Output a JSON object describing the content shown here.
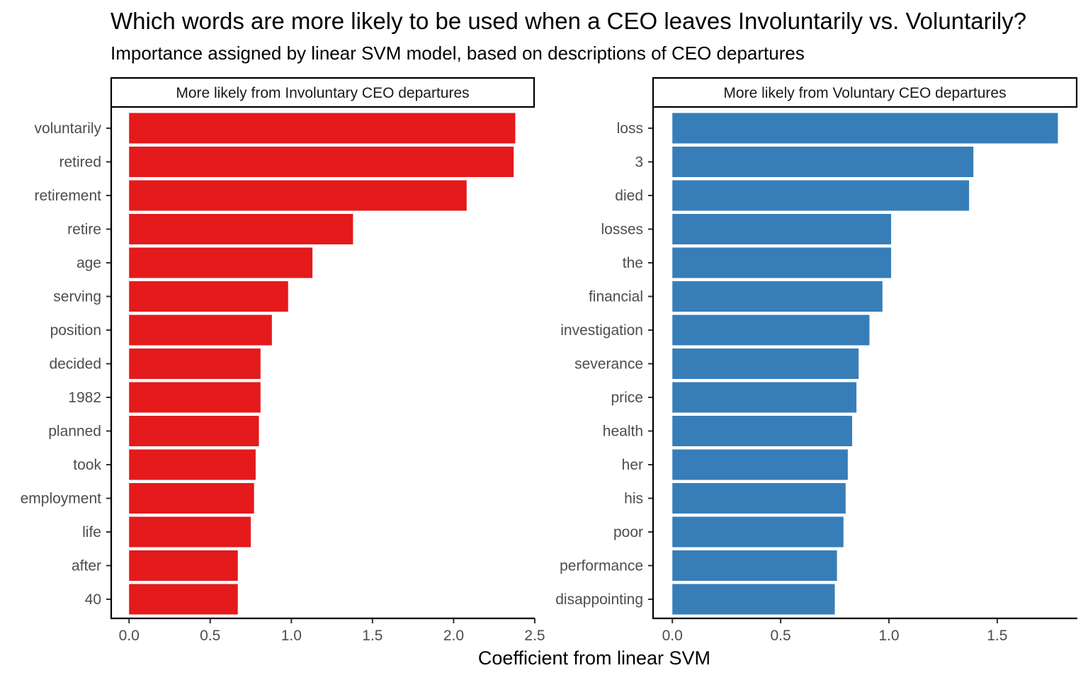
{
  "chart_data": {
    "type": "bar",
    "orientation": "horizontal",
    "title": "Which words are more likely to be used when a CEO leaves Involuntarily vs. Voluntarily?",
    "subtitle": "Importance assigned by linear SVM model, based on descriptions of CEO departures",
    "xlabel": "Coefficient from linear SVM",
    "panels": [
      {
        "strip": "More likely from Involuntary CEO departures",
        "color": "#E41A1C",
        "xlim": [
          -0.11,
          2.5
        ],
        "ticks": [
          0,
          0.5,
          1,
          1.5,
          2,
          2.5
        ],
        "tick_labels": [
          "0.0",
          "0.5",
          "1.0",
          "1.5",
          "2.0",
          "2.5"
        ],
        "categories": [
          "voluntarily",
          "retired",
          "retirement",
          "retire",
          "age",
          "serving",
          "position",
          "decided",
          "1982",
          "planned",
          "took",
          "employment",
          "life",
          "after",
          "40"
        ],
        "values": [
          2.38,
          2.37,
          2.08,
          1.38,
          1.13,
          0.98,
          0.88,
          0.81,
          0.81,
          0.8,
          0.78,
          0.77,
          0.75,
          0.67,
          0.67
        ]
      },
      {
        "strip": "More likely from Voluntary CEO departures",
        "color": "#377EB8",
        "xlim": [
          -0.089,
          1.87
        ],
        "ticks": [
          0,
          0.5,
          1,
          1.5
        ],
        "tick_labels": [
          "0.0",
          "0.5",
          "1.0",
          "1.5"
        ],
        "categories": [
          "loss",
          "3",
          "died",
          "losses",
          "the",
          "financial",
          "investigation",
          "severance",
          "price",
          "health",
          "her",
          "his",
          "poor",
          "performance",
          "disappointing"
        ],
        "values": [
          1.78,
          1.39,
          1.37,
          1.01,
          1.01,
          0.97,
          0.91,
          0.86,
          0.85,
          0.83,
          0.81,
          0.8,
          0.79,
          0.76,
          0.75
        ]
      }
    ]
  }
}
